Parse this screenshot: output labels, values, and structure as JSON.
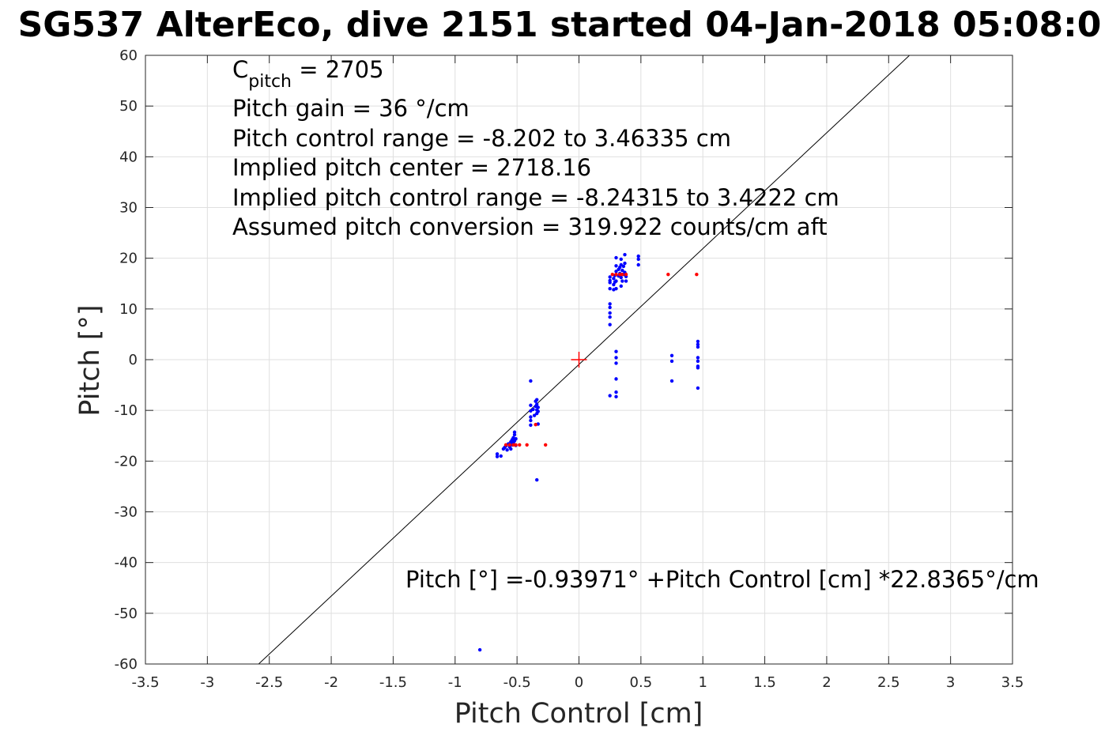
{
  "chart_data": {
    "type": "scatter",
    "title": "SG537 AlterEco, dive 2151 started 04-Jan-2018 05:08:0",
    "xlabel": "Pitch Control [cm]",
    "ylabel": "Pitch [°]",
    "xlim": [
      -3.5,
      3.5
    ],
    "ylim": [
      -60,
      60
    ],
    "xticks": [
      -3.5,
      -3,
      -2.5,
      -2,
      -1.5,
      -1,
      -0.5,
      0,
      0.5,
      1,
      1.5,
      2,
      2.5,
      3,
      3.5
    ],
    "xtick_labels": [
      "-3.5",
      "-3",
      "-2.5",
      "-2",
      "-1.5",
      "-1",
      "-0.5",
      "0",
      "0.5",
      "1",
      "1.5",
      "2",
      "2.5",
      "3",
      "3.5"
    ],
    "yticks": [
      -60,
      -50,
      -40,
      -30,
      -20,
      -10,
      0,
      10,
      20,
      30,
      40,
      50,
      60
    ],
    "ytick_labels": [
      "-60",
      "-50",
      "-40",
      "-30",
      "-20",
      "-10",
      "0",
      "10",
      "20",
      "30",
      "40",
      "50",
      "60"
    ],
    "grid": true,
    "annotations": {
      "c_pitch_base": "C",
      "c_pitch_sub": "pitch",
      "c_pitch_value": " = 2705",
      "lines": [
        "Pitch gain = 36 °/cm",
        "Pitch control range = -8.202 to 3.46335 cm",
        "Implied pitch center = 2718.16",
        "Implied pitch control range = -8.24315 to 3.4222 cm",
        "Assumed pitch conversion = 319.922 counts/cm aft"
      ],
      "fit_equation": "Pitch [°] =-0.93971° +Pitch Control [cm] *22.8365°/cm"
    },
    "fit_line": {
      "intercept": -0.93971,
      "slope": 22.8365,
      "color": "#000000"
    },
    "center_marker": {
      "x": 0,
      "y": 0,
      "color": "#ff0000"
    },
    "series": [
      {
        "color": "#0000ff",
        "points": [
          [
            -0.66,
            -19.1
          ],
          [
            -0.66,
            -18.6
          ],
          [
            -0.63,
            -19.0
          ],
          [
            -0.61,
            -17.6
          ],
          [
            -0.6,
            -17.3
          ],
          [
            -0.59,
            -17.0
          ],
          [
            -0.58,
            -17.8
          ],
          [
            -0.57,
            -16.6
          ],
          [
            -0.56,
            -17.2
          ],
          [
            -0.55,
            -16.2
          ],
          [
            -0.55,
            -17.6
          ],
          [
            -0.54,
            -15.8
          ],
          [
            -0.54,
            -16.8
          ],
          [
            -0.53,
            -15.4
          ],
          [
            -0.53,
            -16.4
          ],
          [
            -0.52,
            -14.8
          ],
          [
            -0.52,
            -16.0
          ],
          [
            -0.52,
            -14.3
          ],
          [
            -0.51,
            -15.6
          ],
          [
            -0.51,
            -16.9
          ],
          [
            -0.39,
            -4.2
          ],
          [
            -0.39,
            -9.0
          ],
          [
            -0.39,
            -10.1
          ],
          [
            -0.39,
            -11.3
          ],
          [
            -0.39,
            -12.0
          ],
          [
            -0.39,
            -12.9
          ],
          [
            -0.37,
            -9.8
          ],
          [
            -0.36,
            -11.0
          ],
          [
            -0.35,
            -8.2
          ],
          [
            -0.35,
            -9.2
          ],
          [
            -0.34,
            -7.9
          ],
          [
            -0.34,
            -8.8
          ],
          [
            -0.34,
            -9.9
          ],
          [
            -0.34,
            -10.6
          ],
          [
            -0.33,
            -9.4
          ],
          [
            -0.33,
            -10.2
          ],
          [
            -0.33,
            -12.7
          ],
          [
            -0.34,
            -23.7
          ],
          [
            -0.8,
            -57.2
          ],
          [
            0.25,
            16.3
          ],
          [
            0.25,
            15.2
          ],
          [
            0.25,
            14.0
          ],
          [
            0.25,
            11.0
          ],
          [
            0.25,
            10.3
          ],
          [
            0.25,
            9.2
          ],
          [
            0.25,
            8.4
          ],
          [
            0.25,
            6.9
          ],
          [
            0.25,
            15.6
          ],
          [
            0.25,
            -7.1
          ],
          [
            0.28,
            16.0
          ],
          [
            0.28,
            14.8
          ],
          [
            0.28,
            13.8
          ],
          [
            0.29,
            15.3
          ],
          [
            0.29,
            16.6
          ],
          [
            0.3,
            20.1
          ],
          [
            0.3,
            18.5
          ],
          [
            0.3,
            17.4
          ],
          [
            0.3,
            15.5
          ],
          [
            0.3,
            14.0
          ],
          [
            0.3,
            1.6
          ],
          [
            0.3,
            0.4
          ],
          [
            0.3,
            -0.7
          ],
          [
            0.3,
            -3.8
          ],
          [
            0.3,
            -6.4
          ],
          [
            0.3,
            -7.3
          ],
          [
            0.32,
            17.8
          ],
          [
            0.32,
            16.5
          ],
          [
            0.33,
            18.2
          ],
          [
            0.33,
            17.0
          ],
          [
            0.34,
            19.8
          ],
          [
            0.34,
            18.7
          ],
          [
            0.34,
            16.2
          ],
          [
            0.34,
            14.5
          ],
          [
            0.35,
            17.6
          ],
          [
            0.35,
            15.5
          ],
          [
            0.36,
            16.8
          ],
          [
            0.36,
            18.4
          ],
          [
            0.37,
            20.7
          ],
          [
            0.37,
            19.0
          ],
          [
            0.37,
            17.2
          ],
          [
            0.38,
            16.4
          ],
          [
            0.38,
            15.5
          ],
          [
            0.48,
            20.4
          ],
          [
            0.48,
            19.8
          ],
          [
            0.48,
            18.7
          ],
          [
            0.75,
            0.8
          ],
          [
            0.75,
            -0.3
          ],
          [
            0.75,
            -4.2
          ],
          [
            0.96,
            3.6
          ],
          [
            0.96,
            3.0
          ],
          [
            0.96,
            2.5
          ],
          [
            0.96,
            0.4
          ],
          [
            0.96,
            -0.3
          ],
          [
            0.96,
            -1.3
          ],
          [
            0.96,
            -1.6
          ],
          [
            0.96,
            -5.6
          ]
        ]
      },
      {
        "color": "#ff0000",
        "points": [
          [
            -0.59,
            -16.8
          ],
          [
            -0.56,
            -16.8
          ],
          [
            -0.53,
            -16.8
          ],
          [
            -0.51,
            -16.8
          ],
          [
            -0.48,
            -16.8
          ],
          [
            -0.42,
            -16.8
          ],
          [
            -0.35,
            -12.8
          ],
          [
            -0.27,
            -16.8
          ],
          [
            0.27,
            16.8
          ],
          [
            0.3,
            16.8
          ],
          [
            0.33,
            16.8
          ],
          [
            0.35,
            16.8
          ],
          [
            0.38,
            16.8
          ],
          [
            0.72,
            16.8
          ],
          [
            0.95,
            16.8
          ]
        ]
      }
    ]
  }
}
